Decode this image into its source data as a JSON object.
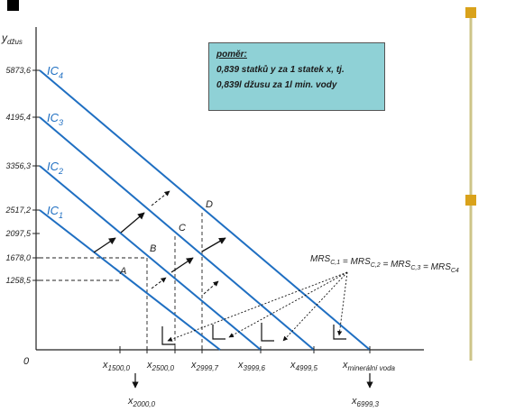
{
  "chart_data": {
    "type": "line",
    "y_axis_label": "y",
    "y_axis_sub": "džus",
    "x_axis_label": "x",
    "x_axis_sub": "minerální voda",
    "origin_label": "0",
    "y_ticks": [
      "5873,6",
      "4195,4",
      "3356,3",
      "2517,2",
      "2097,5",
      "1678,0",
      "1258,5"
    ],
    "x_ticks": [
      {
        "main": "x",
        "sub": "1500,0"
      },
      {
        "main": "x",
        "sub": "2500,0"
      },
      {
        "main": "x",
        "sub": "2999,7"
      },
      {
        "main": "x",
        "sub": "3999,6"
      },
      {
        "main": "x",
        "sub": "4999,5"
      }
    ],
    "x_bottom_ticks": [
      {
        "main": "x",
        "sub": "2000,0"
      },
      {
        "main": "x",
        "sub": "6999,3"
      }
    ],
    "series": [
      {
        "name": "IC",
        "sub": "1"
      },
      {
        "name": "IC",
        "sub": "2"
      },
      {
        "name": "IC",
        "sub": "3"
      },
      {
        "name": "IC",
        "sub": "4"
      }
    ],
    "points": [
      "A",
      "B",
      "C",
      "D"
    ],
    "mrs_label": {
      "parts": [
        {
          "main": "MRS",
          "sub": "C,1"
        },
        {
          "main": "MRS",
          "sub": "C,2"
        },
        {
          "main": "MRS",
          "sub": "C,3"
        },
        {
          "main": "MRS",
          "sub": "C4"
        }
      ],
      "sep": "="
    },
    "colors": {
      "curve": "#1f6fc2",
      "note_bg": "#8fd1d6",
      "marker": "#d9a21b",
      "axis": "#222222"
    }
  },
  "note": {
    "title": "poměr:",
    "line1": "0,839 statků y za 1 statek x, tj.",
    "line2": "0,839l džusu za 1l min. vody"
  }
}
